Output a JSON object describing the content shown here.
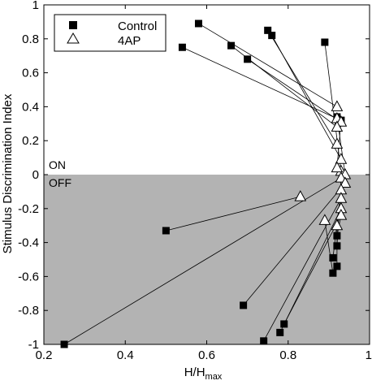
{
  "chart_data": {
    "type": "scatter",
    "title": "",
    "xlabel": "H/H",
    "xlabel_subscript": "max",
    "ylabel": "Stimulus Discrimination Index",
    "xlim": [
      0.2,
      1.0
    ],
    "ylim": [
      -1.0,
      1.0
    ],
    "xticks": [
      0.2,
      0.4,
      0.6,
      0.8,
      1.0
    ],
    "xtick_labels": [
      "0.2",
      "0.4",
      "0.6",
      "0.8",
      "1"
    ],
    "yticks": [
      -1,
      -0.8,
      -0.6,
      -0.4,
      -0.2,
      0,
      0.2,
      0.4,
      0.6,
      0.8,
      1
    ],
    "ytick_labels": [
      "-1",
      "-0.8",
      "-0.6",
      "-0.4",
      "-0.2",
      "0",
      "0.2",
      "0.4",
      "0.6",
      "0.8",
      "1"
    ],
    "shaded_region": {
      "y_from": -1.0,
      "y_to": 0.0,
      "color": "#b3b3b3"
    },
    "region_labels": {
      "on": "ON",
      "off": "OFF"
    },
    "legend": {
      "placement": "top-left",
      "entries": [
        {
          "label": "Control",
          "marker": "square"
        },
        {
          "label": "4AP",
          "marker": "triangle"
        }
      ]
    },
    "series": [
      {
        "name": "Control",
        "marker": "square",
        "color": "#000000",
        "points": [
          [
            0.58,
            0.89
          ],
          [
            0.54,
            0.75
          ],
          [
            0.66,
            0.76
          ],
          [
            0.7,
            0.68
          ],
          [
            0.75,
            0.85
          ],
          [
            0.76,
            0.82
          ],
          [
            0.89,
            0.78
          ],
          [
            0.93,
            0.32
          ],
          [
            0.92,
            0.34
          ],
          [
            0.5,
            -0.33
          ],
          [
            0.25,
            -1.0
          ],
          [
            0.69,
            -0.77
          ],
          [
            0.74,
            -0.98
          ],
          [
            0.78,
            -0.93
          ],
          [
            0.79,
            -0.88
          ],
          [
            0.91,
            -0.58
          ],
          [
            0.92,
            -0.54
          ],
          [
            0.91,
            -0.49
          ],
          [
            0.92,
            -0.42
          ],
          [
            0.92,
            -0.36
          ]
        ]
      },
      {
        "name": "4AP",
        "marker": "triangle",
        "color": "#ffffff",
        "points": [
          [
            0.92,
            0.4
          ],
          [
            0.92,
            0.33
          ],
          [
            0.93,
            0.31
          ],
          [
            0.92,
            0.28
          ],
          [
            0.92,
            0.18
          ],
          [
            0.93,
            0.09
          ],
          [
            0.93,
            0.02
          ],
          [
            0.94,
            0.0
          ],
          [
            0.93,
            -0.02
          ],
          [
            0.92,
            0.04
          ],
          [
            0.94,
            -0.05
          ],
          [
            0.93,
            -0.09
          ],
          [
            0.93,
            -0.14
          ],
          [
            0.83,
            -0.13
          ],
          [
            0.93,
            -0.2
          ],
          [
            0.93,
            -0.24
          ],
          [
            0.89,
            -0.27
          ],
          [
            0.92,
            -0.3
          ]
        ]
      }
    ],
    "connections": [
      {
        "from": [
          0.58,
          0.89
        ],
        "to": [
          0.92,
          0.4
        ]
      },
      {
        "from": [
          0.54,
          0.75
        ],
        "to": [
          0.92,
          0.33
        ]
      },
      {
        "from": [
          0.66,
          0.76
        ],
        "to": [
          0.92,
          0.28
        ]
      },
      {
        "from": [
          0.7,
          0.68
        ],
        "to": [
          0.93,
          0.31
        ]
      },
      {
        "from": [
          0.75,
          0.85
        ],
        "to": [
          0.92,
          0.18
        ]
      },
      {
        "from": [
          0.76,
          0.82
        ],
        "to": [
          0.93,
          0.09
        ]
      },
      {
        "from": [
          0.89,
          0.78
        ],
        "to": [
          0.93,
          0.02
        ]
      },
      {
        "from": [
          0.93,
          0.32
        ],
        "to": [
          0.92,
          0.04
        ]
      },
      {
        "from": [
          0.92,
          0.34
        ],
        "to": [
          0.94,
          0.0
        ]
      },
      {
        "from": [
          0.5,
          -0.33
        ],
        "to": [
          0.83,
          -0.13
        ]
      },
      {
        "from": [
          0.25,
          -1.0
        ],
        "to": [
          0.93,
          -0.02
        ]
      },
      {
        "from": [
          0.69,
          -0.77
        ],
        "to": [
          0.94,
          -0.05
        ]
      },
      {
        "from": [
          0.74,
          -0.98
        ],
        "to": [
          0.93,
          -0.14
        ]
      },
      {
        "from": [
          0.78,
          -0.93
        ],
        "to": [
          0.93,
          -0.2
        ]
      },
      {
        "from": [
          0.79,
          -0.88
        ],
        "to": [
          0.93,
          -0.24
        ]
      },
      {
        "from": [
          0.91,
          -0.58
        ],
        "to": [
          0.89,
          -0.27
        ]
      },
      {
        "from": [
          0.92,
          -0.54
        ],
        "to": [
          0.92,
          -0.3
        ]
      },
      {
        "from": [
          0.91,
          -0.49
        ],
        "to": [
          0.93,
          -0.09
        ]
      },
      {
        "from": [
          0.92,
          -0.42
        ],
        "to": [
          0.93,
          -0.02
        ]
      },
      {
        "from": [
          0.92,
          -0.36
        ],
        "to": [
          0.93,
          -0.24
        ]
      }
    ]
  }
}
